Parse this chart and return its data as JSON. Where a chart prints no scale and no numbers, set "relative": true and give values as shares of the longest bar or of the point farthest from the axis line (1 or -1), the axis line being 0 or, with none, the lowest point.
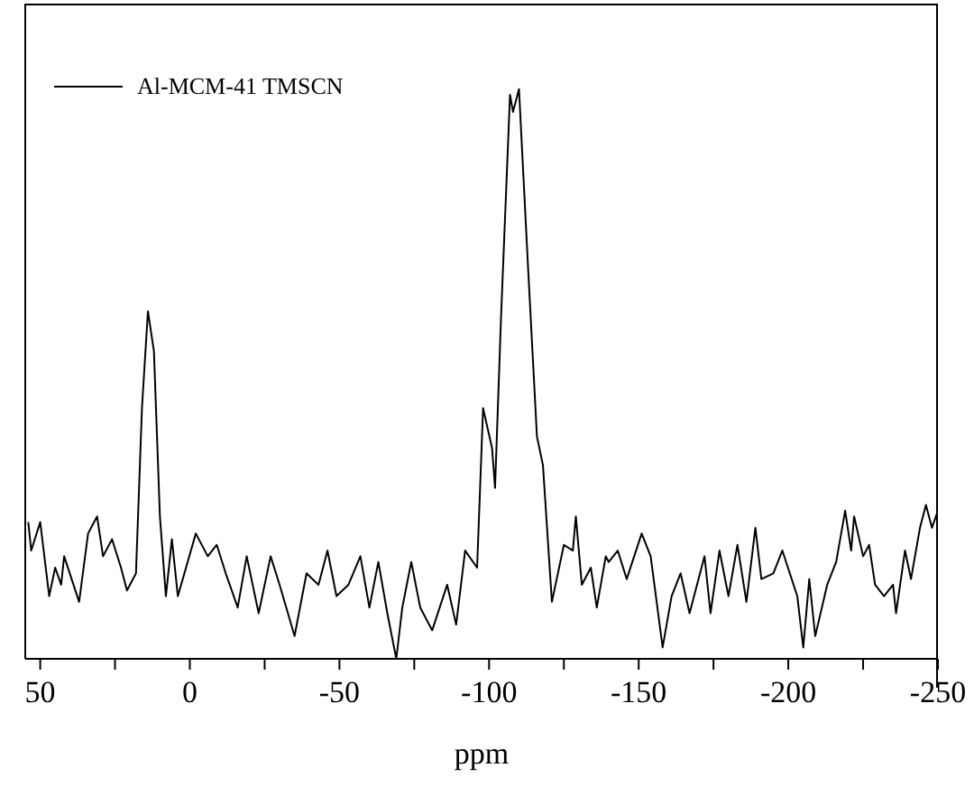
{
  "chart_data": {
    "type": "line",
    "xlabel": "ppm",
    "relative": true,
    "legend": "top left",
    "tick_labels": "x",
    "grid": false,
    "marker": "none",
    "line_style": "solid",
    "xlim": [
      55,
      -250
    ],
    "xticks": [
      50,
      {
        "value": 25,
        "label": null
      },
      0,
      {
        "value": -25,
        "label": null
      },
      -50,
      {
        "value": -75,
        "label": null
      },
      -100,
      {
        "value": -125,
        "label": null
      },
      -150,
      {
        "value": -175,
        "label": null
      },
      -200,
      {
        "value": -225,
        "label": null
      },
      -250
    ],
    "x": [
      54,
      53,
      50,
      47,
      45,
      43,
      42,
      37,
      34,
      31,
      29,
      26,
      23,
      21,
      18,
      16,
      14,
      12,
      10,
      8,
      6,
      4,
      -2,
      -6,
      -9,
      -12,
      -16,
      -19,
      -23,
      -27,
      -30,
      -35,
      -39,
      -43,
      -46,
      -49,
      -53,
      -57,
      -60,
      -63,
      -66,
      -69,
      -71,
      -74,
      -77,
      -81,
      -86,
      -89,
      -92,
      -96,
      -98,
      -101,
      -102,
      -104,
      -107,
      -108,
      -110,
      -113,
      -116,
      -118,
      -121,
      -125,
      -128,
      -129,
      -131,
      -134,
      -136,
      -139,
      -140,
      -143,
      -146,
      -151,
      -154,
      -158,
      -161,
      -164,
      -167,
      -172,
      -174,
      -177,
      -180,
      -183,
      -186,
      -189,
      -191,
      -195,
      -198,
      -203,
      -205,
      -207,
      -209,
      -213,
      -216,
      -219,
      -221,
      -222,
      -225,
      -227,
      -229,
      -232,
      -235,
      -236,
      -239,
      -241,
      -244,
      -246,
      -248,
      -250
    ],
    "series": [
      {
        "name": "Al-MCM-41 TMSCN",
        "color": "#000000",
        "values": [
          0.24,
          0.19,
          0.24,
          0.11,
          0.16,
          0.13,
          0.18,
          0.1,
          0.22,
          0.25,
          0.18,
          0.21,
          0.16,
          0.12,
          0.15,
          0.44,
          0.61,
          0.54,
          0.25,
          0.11,
          0.21,
          0.11,
          0.22,
          0.18,
          0.2,
          0.15,
          0.09,
          0.18,
          0.08,
          0.18,
          0.13,
          0.04,
          0.15,
          0.13,
          0.19,
          0.11,
          0.13,
          0.18,
          0.09,
          0.17,
          0.08,
          0.0,
          0.09,
          0.17,
          0.09,
          0.05,
          0.13,
          0.06,
          0.19,
          0.16,
          0.44,
          0.37,
          0.3,
          0.6,
          0.99,
          0.96,
          1.0,
          0.69,
          0.39,
          0.34,
          0.1,
          0.2,
          0.19,
          0.25,
          0.13,
          0.16,
          0.09,
          0.18,
          0.17,
          0.19,
          0.14,
          0.22,
          0.18,
          0.02,
          0.11,
          0.15,
          0.08,
          0.18,
          0.08,
          0.19,
          0.11,
          0.2,
          0.1,
          0.23,
          0.14,
          0.15,
          0.19,
          0.11,
          0.02,
          0.14,
          0.04,
          0.13,
          0.17,
          0.26,
          0.19,
          0.25,
          0.18,
          0.2,
          0.13,
          0.11,
          0.13,
          0.08,
          0.19,
          0.14,
          0.23,
          0.27,
          0.23,
          0.26
        ]
      }
    ]
  }
}
